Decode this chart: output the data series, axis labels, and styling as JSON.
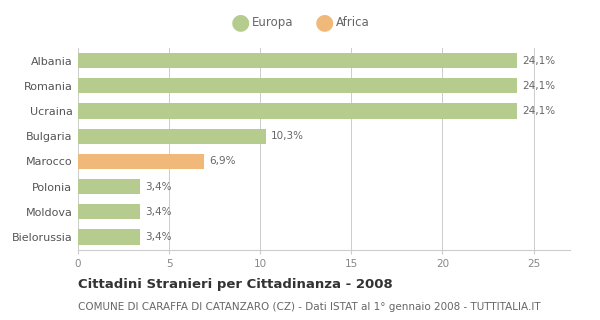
{
  "categories": [
    "Albania",
    "Romania",
    "Ucraina",
    "Bulgaria",
    "Marocco",
    "Polonia",
    "Moldova",
    "Bielorussia"
  ],
  "values": [
    24.1,
    24.1,
    24.1,
    10.3,
    6.9,
    3.4,
    3.4,
    3.4
  ],
  "labels": [
    "24,1%",
    "24,1%",
    "24,1%",
    "10,3%",
    "6,9%",
    "3,4%",
    "3,4%",
    "3,4%"
  ],
  "colors": [
    "#b5cc8e",
    "#b5cc8e",
    "#b5cc8e",
    "#b5cc8e",
    "#f0b97a",
    "#b5cc8e",
    "#b5cc8e",
    "#b5cc8e"
  ],
  "legend_europa_color": "#b5cc8e",
  "legend_africa_color": "#f0b97a",
  "title": "Cittadini Stranieri per Cittadinanza - 2008",
  "subtitle": "COMUNE DI CARAFFA DI CATANZARO (CZ) - Dati ISTAT al 1° gennaio 2008 - TUTTITALIA.IT",
  "xlim": [
    0,
    27
  ],
  "xticks": [
    0,
    5,
    10,
    15,
    20,
    25
  ],
  "background_color": "#ffffff",
  "bar_edge_color": "none",
  "title_fontsize": 9.5,
  "subtitle_fontsize": 7.5,
  "label_fontsize": 7.5,
  "tick_fontsize": 7.5,
  "ytick_fontsize": 8,
  "legend_fontsize": 8.5,
  "grid_color": "#cccccc"
}
